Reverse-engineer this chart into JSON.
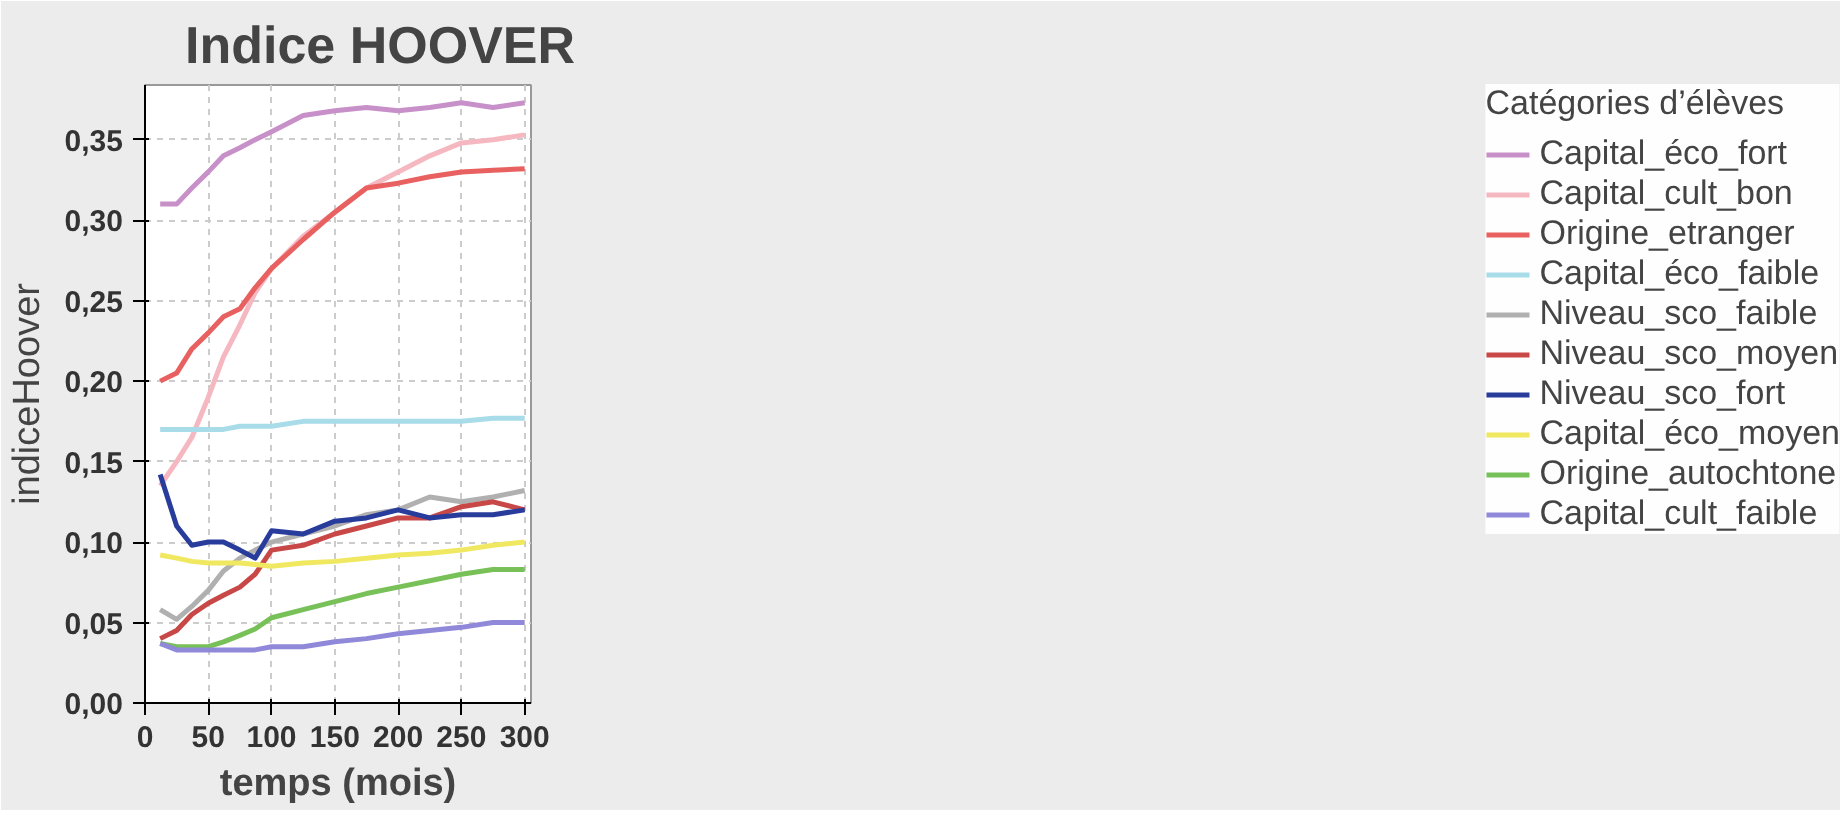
{
  "chart_data": {
    "type": "line",
    "title": "Indice HOOVER",
    "xlabel": "temps (mois)",
    "ylabel": "indiceHoover",
    "legend_title": "Catégories d’élèves",
    "x": [
      12,
      25,
      37,
      50,
      62,
      75,
      87,
      100,
      125,
      150,
      175,
      200,
      225,
      250,
      275,
      300
    ],
    "xlim": [
      0,
      305
    ],
    "xticks": [
      0,
      50,
      100,
      150,
      200,
      250,
      300
    ],
    "ylim": [
      0,
      0.384
    ],
    "yticks": [
      {
        "value": 0,
        "label": "0,00"
      },
      {
        "value": 0.05,
        "label": "0,05"
      },
      {
        "value": 0.1,
        "label": "0,10"
      },
      {
        "value": 0.15,
        "label": "0,15"
      },
      {
        "value": 0.2,
        "label": "0,20"
      },
      {
        "value": 0.25,
        "label": "0,25"
      },
      {
        "value": 0.3,
        "label": "0,30"
      },
      {
        "value": 0.35,
        "label": "0,35"
      }
    ],
    "grid": true,
    "legend": "right",
    "line_style": "solid",
    "marker": "none",
    "series": [
      {
        "name": "Capital_éco_fort",
        "color": "#c890c8",
        "values": [
          0.31,
          0.31,
          0.32,
          0.33,
          0.34,
          0.345,
          0.35,
          0.355,
          0.365,
          0.368,
          0.37,
          0.368,
          0.37,
          0.373,
          0.37,
          0.373
        ]
      },
      {
        "name": "Capital_cult_bon",
        "color": "#f6b8c0",
        "values": [
          0.135,
          0.15,
          0.165,
          0.19,
          0.215,
          0.235,
          0.255,
          0.27,
          0.29,
          0.305,
          0.32,
          0.33,
          0.34,
          0.348,
          0.35,
          0.353
        ]
      },
      {
        "name": "Origine_etranger",
        "color": "#e86060",
        "values": [
          0.2,
          0.205,
          0.22,
          0.23,
          0.24,
          0.245,
          0.258,
          0.27,
          0.288,
          0.305,
          0.32,
          0.323,
          0.327,
          0.33,
          0.331,
          0.332
        ]
      },
      {
        "name": "Capital_éco_faible",
        "color": "#a8dce8",
        "values": [
          0.17,
          0.17,
          0.17,
          0.17,
          0.17,
          0.172,
          0.172,
          0.172,
          0.175,
          0.175,
          0.175,
          0.175,
          0.175,
          0.175,
          0.177,
          0.177
        ]
      },
      {
        "name": "Niveau_sco_faible",
        "color": "#b0b0b0",
        "values": [
          0.058,
          0.052,
          0.06,
          0.07,
          0.082,
          0.09,
          0.095,
          0.1,
          0.105,
          0.11,
          0.117,
          0.12,
          0.128,
          0.125,
          0.128,
          0.132
        ]
      },
      {
        "name": "Niveau_sco_moyen",
        "color": "#c84848",
        "values": [
          0.04,
          0.045,
          0.055,
          0.062,
          0.067,
          0.072,
          0.08,
          0.095,
          0.098,
          0.105,
          0.11,
          0.115,
          0.115,
          0.122,
          0.125,
          0.12
        ]
      },
      {
        "name": "Niveau_sco_fort",
        "color": "#283c9c",
        "values": [
          0.142,
          0.11,
          0.098,
          0.1,
          0.1,
          0.095,
          0.09,
          0.107,
          0.105,
          0.113,
          0.115,
          0.12,
          0.115,
          0.117,
          0.117,
          0.12
        ]
      },
      {
        "name": "Capital_éco_moyen",
        "color": "#f0e860",
        "values": [
          0.092,
          0.09,
          0.088,
          0.087,
          0.087,
          0.087,
          0.086,
          0.085,
          0.087,
          0.088,
          0.09,
          0.092,
          0.093,
          0.095,
          0.098,
          0.1
        ]
      },
      {
        "name": "Origine_autochtone",
        "color": "#78c058",
        "values": [
          0.037,
          0.035,
          0.035,
          0.035,
          0.038,
          0.042,
          0.046,
          0.053,
          0.058,
          0.063,
          0.068,
          0.072,
          0.076,
          0.08,
          0.083,
          0.083
        ]
      },
      {
        "name": "Capital_cult_faible",
        "color": "#9088d8",
        "values": [
          0.037,
          0.033,
          0.033,
          0.033,
          0.033,
          0.033,
          0.033,
          0.035,
          0.035,
          0.038,
          0.04,
          0.043,
          0.045,
          0.047,
          0.05,
          0.05
        ]
      }
    ]
  }
}
